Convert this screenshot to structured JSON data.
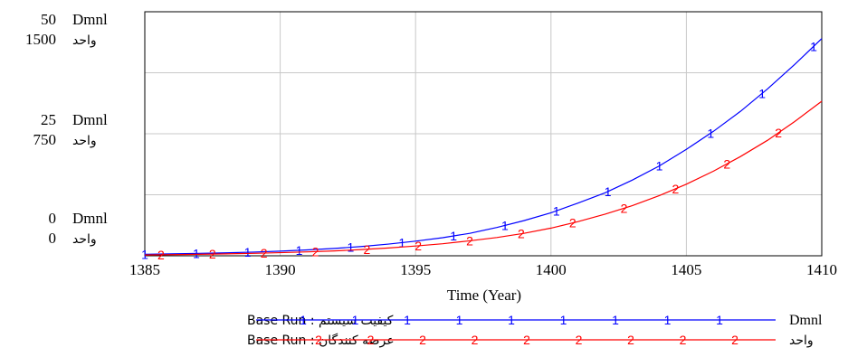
{
  "chart_data": {
    "type": "line",
    "x_axis": {
      "label": "Time (Year)",
      "min": 1385,
      "max": 1410,
      "ticks": [
        "1385",
        "1390",
        "1395",
        "1400",
        "1405",
        "1410"
      ]
    },
    "y_axes": [
      {
        "unit": "Dmnl",
        "min": 0,
        "max": 50,
        "ticks": [
          {
            "value": "50",
            "unit": "Dmnl"
          },
          {
            "value": "25",
            "unit": "Dmnl"
          },
          {
            "value": "0",
            "unit": "Dmnl"
          }
        ]
      },
      {
        "unit": "واحد",
        "min": 0,
        "max": 1500,
        "ticks": [
          {
            "value": "1500",
            "unit": "واحد"
          },
          {
            "value": "750",
            "unit": "واحد"
          },
          {
            "value": "0",
            "unit": "واحد"
          }
        ]
      }
    ],
    "grid": true,
    "series": [
      {
        "name": "کیفیت سیستم : Base Run",
        "marker": "1",
        "unit": "Dmnl",
        "axis": 0,
        "color": "#0000ff",
        "x": [
          1385,
          1386,
          1387,
          1388,
          1389,
          1390,
          1391,
          1392,
          1393,
          1394,
          1395,
          1396,
          1397,
          1398,
          1399,
          1400,
          1401,
          1402,
          1403,
          1404,
          1405,
          1406,
          1407,
          1408,
          1409,
          1410
        ],
        "y": [
          0.3,
          0.4,
          0.5,
          0.6,
          0.75,
          0.95,
          1.2,
          1.5,
          1.9,
          2.4,
          3.0,
          3.7,
          4.6,
          5.8,
          7.2,
          8.8,
          10.8,
          12.9,
          15.5,
          18.4,
          21.8,
          25.5,
          29.6,
          34.2,
          39.2,
          44.5
        ]
      },
      {
        "name": "عرضه کنندگان : Base Run",
        "marker": "2",
        "unit": "واحد",
        "axis": 1,
        "color": "#ff0000",
        "x": [
          1385,
          1386,
          1387,
          1388,
          1389,
          1390,
          1391,
          1392,
          1393,
          1394,
          1395,
          1396,
          1397,
          1398,
          1399,
          1400,
          1401,
          1402,
          1403,
          1404,
          1405,
          1406,
          1407,
          1408,
          1409,
          1410
        ],
        "y": [
          5,
          7,
          9,
          12,
          15,
          19,
          24,
          30,
          38,
          48,
          60,
          74,
          92,
          112,
          138,
          170,
          210,
          256,
          308,
          370,
          440,
          520,
          610,
          710,
          825,
          950
        ]
      }
    ]
  },
  "legend": [
    {
      "name": "کیفیت سیستم : Base Run",
      "unit": "Dmnl",
      "marker": "1",
      "color": "#0000ff"
    },
    {
      "name": "عرضه کنندگان : Base Run",
      "unit": "واحد",
      "marker": "2",
      "color": "#ff0000"
    }
  ]
}
